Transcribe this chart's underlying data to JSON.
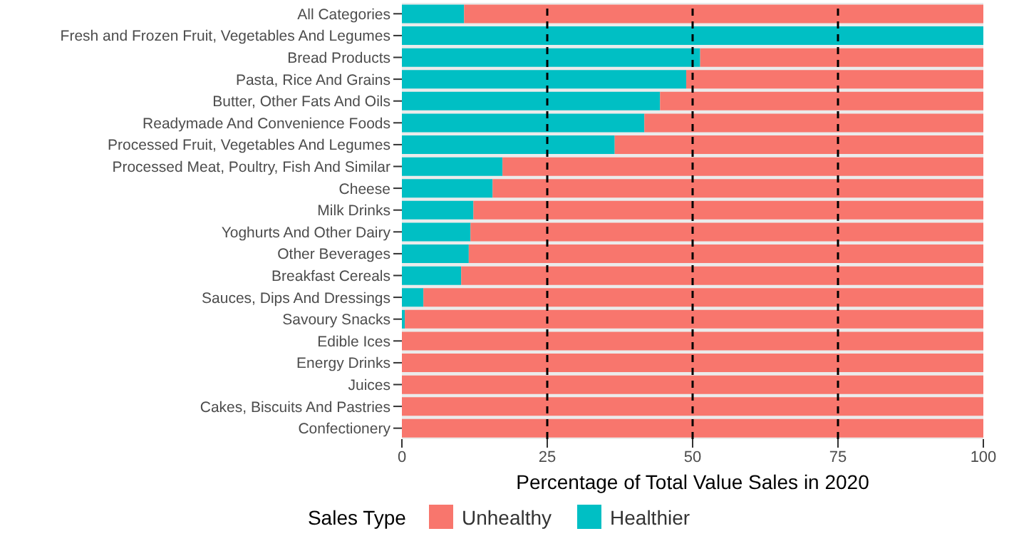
{
  "chart_data": {
    "type": "bar",
    "orientation": "horizontal",
    "stacked": true,
    "xlabel": "Percentage of Total Value Sales in 2020",
    "legend_title": "Sales Type",
    "legend": "bottom",
    "categories": [
      "All Categories",
      "Fresh and Frozen Fruit, Vegetables And Legumes",
      "Bread Products",
      "Pasta, Rice And Grains",
      "Butter, Other Fats And Oils",
      "Readymade And Convenience Foods",
      "Processed Fruit, Vegetables And Legumes",
      "Processed Meat, Poultry, Fish And Similar",
      "Cheese",
      "Milk Drinks",
      "Yoghurts And Other Dairy",
      "Other Beverages",
      "Breakfast Cereals",
      "Sauces, Dips And Dressings",
      "Savoury Snacks",
      "Edible Ices",
      "Energy Drinks",
      "Juices",
      "Cakes, Biscuits And Pastries",
      "Confectionery"
    ],
    "series": [
      {
        "name": "Healthier",
        "color": "#00bfc4",
        "values": [
          10.7,
          100,
          51.3,
          48.9,
          44.4,
          41.7,
          36.6,
          17.3,
          15.6,
          12.3,
          11.8,
          11.5,
          10.2,
          3.7,
          0.5,
          0,
          0,
          0,
          0,
          0
        ]
      },
      {
        "name": "Unhealthy",
        "color": "#f8766d",
        "values": [
          89.3,
          0,
          48.7,
          51.1,
          55.6,
          58.3,
          63.4,
          82.7,
          84.4,
          87.7,
          88.2,
          88.5,
          89.8,
          96.3,
          99.5,
          100,
          100,
          100,
          100,
          100
        ]
      }
    ],
    "xlim": [
      0,
      100
    ],
    "xticks": [
      0,
      25,
      50,
      75,
      100
    ],
    "ref_lines": [
      {
        "axis": "x",
        "value": 25,
        "color": "#000000",
        "line_style": "dashed"
      },
      {
        "axis": "x",
        "value": 50,
        "color": "#000000",
        "line_style": "dashed"
      },
      {
        "axis": "x",
        "value": 75,
        "color": "#000000",
        "line_style": "dashed"
      }
    ]
  }
}
